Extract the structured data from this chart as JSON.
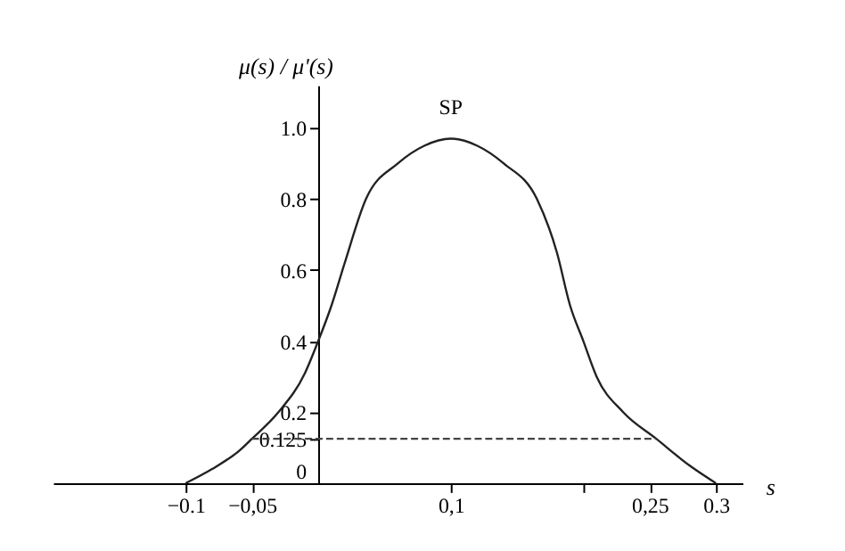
{
  "chart_data": {
    "type": "line",
    "xlabel": "s",
    "ylabel": "μ(s) / μ'(s)",
    "xlim": [
      -0.2,
      0.32
    ],
    "ylim": [
      0,
      1.12
    ],
    "xticks": [
      {
        "value": -0.1,
        "label": "−0.1"
      },
      {
        "value": -0.05,
        "label": "−0,05"
      },
      {
        "value": 0.1,
        "label": "0,1"
      },
      {
        "value": 0.2,
        "label": null
      },
      {
        "value": 0.25,
        "label": "0,25"
      },
      0.3
    ],
    "yticks": [
      0,
      0.125,
      0.2,
      0.4,
      0.6,
      0.8,
      {
        "value": 1,
        "label": "1.0"
      }
    ],
    "grid": false,
    "marker": "none",
    "series": [
      {
        "color": "#222222",
        "line_style": "solid",
        "x": [
          -0.1,
          -0.08,
          -0.06,
          -0.05,
          -0.03,
          -0.01,
          0,
          0.01,
          0.02,
          0.036,
          0.06,
          0.08,
          0.1,
          0.12,
          0.14,
          0.165,
          0.18,
          0.19,
          0.2,
          0.21,
          0.23,
          0.255,
          0.28,
          0.3
        ],
        "values": [
          0,
          0.04,
          0.09,
          0.125,
          0.2,
          0.31,
          0.4,
          0.5,
          0.62,
          0.8,
          0.9,
          0.95,
          0.97,
          0.95,
          0.9,
          0.8,
          0.65,
          0.5,
          0.4,
          0.3,
          0.2,
          0.125,
          0.05,
          0
        ]
      },
      {
        "color": "#444444",
        "line_style": "dashed",
        "x": [
          -0.05,
          0.255
        ],
        "values": [
          0.125,
          0.125
        ]
      }
    ],
    "annotations": [
      {
        "text": "SP",
        "x": 0.1,
        "y": 0.97
      }
    ]
  }
}
